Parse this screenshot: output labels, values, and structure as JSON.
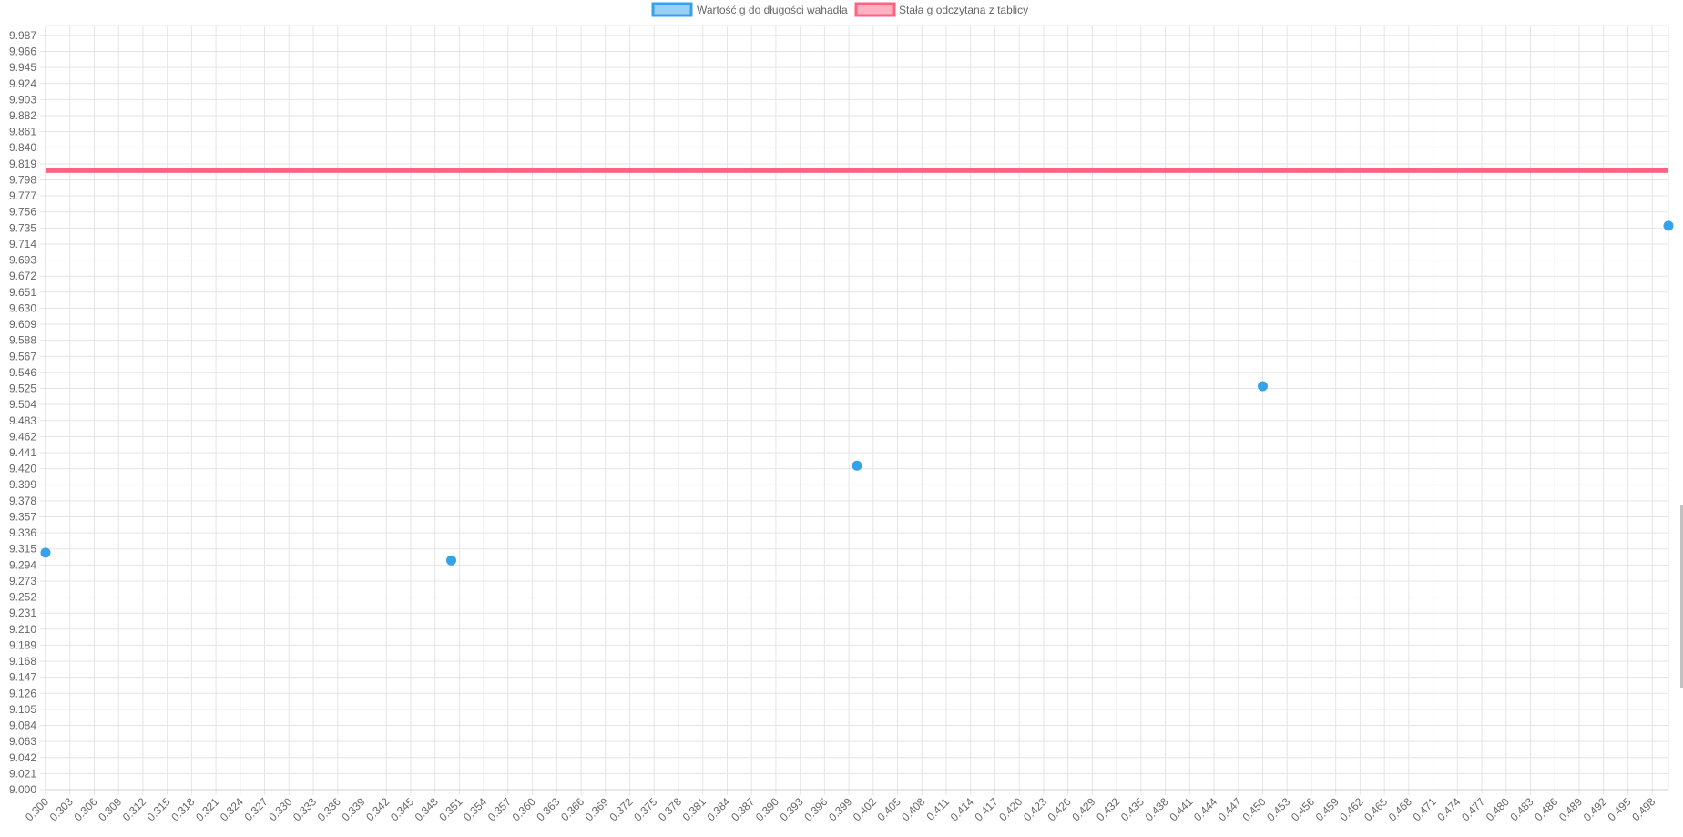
{
  "chart_data": {
    "type": "scatter",
    "title": "",
    "xlabel": "",
    "ylabel": "",
    "xlim": [
      0.3,
      0.5
    ],
    "ylim": [
      9.0,
      10.0
    ],
    "grid": true,
    "legend_position": "top-center",
    "x_ticks": [
      "0.300",
      "0.303",
      "0.306",
      "0.309",
      "0.312",
      "0.315",
      "0.318",
      "0.321",
      "0.324",
      "0.327",
      "0.330",
      "0.333",
      "0.336",
      "0.339",
      "0.342",
      "0.345",
      "0.348",
      "0.351",
      "0.354",
      "0.357",
      "0.360",
      "0.363",
      "0.366",
      "0.369",
      "0.372",
      "0.375",
      "0.378",
      "0.381",
      "0.384",
      "0.387",
      "0.390",
      "0.393",
      "0.396",
      "0.399",
      "0.402",
      "0.405",
      "0.408",
      "0.411",
      "0.414",
      "0.417",
      "0.420",
      "0.423",
      "0.426",
      "0.429",
      "0.432",
      "0.435",
      "0.438",
      "0.441",
      "0.444",
      "0.447",
      "0.450",
      "0.453",
      "0.456",
      "0.459",
      "0.462",
      "0.465",
      "0.468",
      "0.471",
      "0.474",
      "0.477",
      "0.480",
      "0.483",
      "0.486",
      "0.489",
      "0.492",
      "0.495",
      "0.498"
    ],
    "y_ticks": [
      "9.000",
      "9.021",
      "9.042",
      "9.063",
      "9.084",
      "9.105",
      "9.126",
      "9.147",
      "9.168",
      "9.189",
      "9.210",
      "9.231",
      "9.252",
      "9.273",
      "9.294",
      "9.315",
      "9.336",
      "9.357",
      "9.378",
      "9.399",
      "9.420",
      "9.441",
      "9.462",
      "9.483",
      "9.504",
      "9.525",
      "9.546",
      "9.567",
      "9.588",
      "9.609",
      "9.630",
      "9.651",
      "9.672",
      "9.693",
      "9.714",
      "9.735",
      "9.756",
      "9.777",
      "9.798",
      "9.819",
      "9.840",
      "9.861",
      "9.882",
      "9.903",
      "9.924",
      "9.945",
      "9.966",
      "9.987"
    ],
    "series": [
      {
        "name": "Wartość g do długości wahadła",
        "type": "scatter",
        "color": "#36a2eb",
        "points": [
          {
            "x": 0.3,
            "y": 9.31
          },
          {
            "x": 0.35,
            "y": 9.3
          },
          {
            "x": 0.4,
            "y": 9.424
          },
          {
            "x": 0.45,
            "y": 9.528
          },
          {
            "x": 0.5,
            "y": 9.738
          }
        ]
      },
      {
        "name": "Stała g odczytana z tablicy",
        "type": "line",
        "color": "#ff6384",
        "points": [
          {
            "x": 0.3,
            "y": 9.81
          },
          {
            "x": 0.5,
            "y": 9.81
          }
        ]
      }
    ]
  }
}
